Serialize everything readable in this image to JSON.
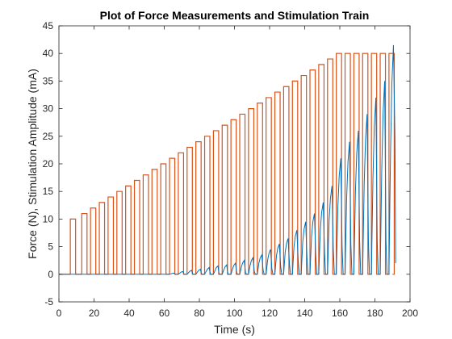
{
  "chart_data": {
    "type": "line",
    "title": "Plot of Force Measurements and Stimulation Train",
    "xlabel": "Time (s)",
    "ylabel": "Force (N), Stimulation Amplitude (mA)",
    "xlim": [
      0,
      200
    ],
    "ylim": [
      -5,
      45
    ],
    "xticks": [
      0,
      20,
      40,
      60,
      80,
      100,
      120,
      140,
      160,
      180,
      200
    ],
    "yticks": [
      -5,
      0,
      5,
      10,
      15,
      20,
      25,
      30,
      35,
      40,
      45
    ],
    "grid": false,
    "legend": "none",
    "colors": {
      "force": "#0072BD",
      "stimulation": "#D95319",
      "axes": "#262626"
    },
    "stimulation_train": {
      "color": "#D95319",
      "pulse_starts": [
        6.5,
        13,
        18,
        23,
        28,
        33,
        38,
        43,
        48,
        53,
        58,
        63,
        68,
        73,
        78,
        83,
        88,
        93,
        98,
        103,
        108,
        113,
        118,
        123,
        128,
        133,
        138,
        143,
        148,
        153,
        158,
        163,
        168,
        173,
        178,
        183,
        188
      ],
      "pulse_width": 3,
      "amplitudes": [
        10,
        11,
        12,
        13,
        14,
        15,
        16,
        17,
        18,
        19,
        20,
        21,
        22,
        23,
        24,
        25,
        26,
        27,
        28,
        29,
        30,
        31,
        32,
        33,
        34,
        35,
        36,
        37,
        38,
        39,
        40,
        40,
        40,
        40,
        40,
        40,
        40
      ]
    },
    "force": {
      "color": "#0072BD",
      "pulse_peaks": [
        0,
        0,
        0,
        0,
        0,
        0,
        0,
        0,
        0,
        0,
        0,
        0.2,
        0.5,
        0.7,
        0.9,
        1.2,
        1.5,
        1.7,
        2.0,
        2.5,
        3.0,
        3.5,
        4.5,
        5.5,
        6.5,
        8.0,
        9.5,
        11.0,
        13.0,
        16.0,
        21.0,
        24.0,
        26.0,
        29.0,
        32.0,
        35.0,
        41.5
      ],
      "pulse_baselines": [
        0,
        0,
        0,
        0,
        0,
        0,
        0,
        0,
        0,
        0,
        0,
        0,
        0,
        0,
        0,
        0,
        0,
        0,
        0.2,
        0.3,
        0.5,
        0.8,
        1.0,
        1.5,
        2.0,
        2.5,
        3.0,
        3.5,
        4.0,
        4.5,
        5.0,
        5.5,
        6.0,
        6.0,
        6.0,
        6.0,
        6.5
      ]
    }
  }
}
